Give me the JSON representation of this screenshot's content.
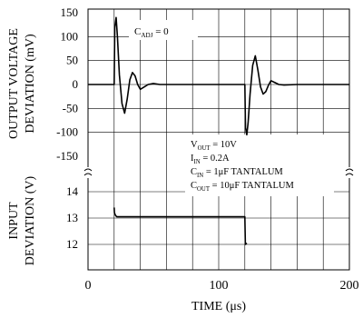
{
  "chart_data": [
    {
      "type": "line",
      "panel": "top",
      "ylabel_lines": [
        "OUTPUT VOLTAGE",
        "DEVIATION (mV)"
      ],
      "yticks": [
        150,
        100,
        50,
        0,
        -50,
        -100,
        -150
      ],
      "ylim": [
        -150,
        150
      ],
      "xlim": [
        0,
        200
      ],
      "grid": true,
      "annotation": {
        "base": "C",
        "sub": "ADJ",
        "rest": " = 0"
      },
      "series": [
        {
          "x": [
            0,
            20,
            20.5,
            21.5,
            22.5,
            24,
            26,
            28,
            30,
            32,
            34,
            36,
            38,
            40,
            43,
            46,
            50,
            55,
            60,
            120,
            120.5,
            121.5,
            122.5,
            124,
            126,
            128,
            130,
            132,
            134,
            136,
            138,
            140,
            143,
            146,
            150,
            160,
            200
          ],
          "y": [
            0,
            0,
            120,
            140,
            100,
            20,
            -40,
            -60,
            -30,
            10,
            25,
            18,
            0,
            -10,
            -5,
            0,
            2,
            0,
            0,
            0,
            -90,
            -105,
            -80,
            -20,
            40,
            60,
            30,
            -5,
            -20,
            -15,
            -2,
            8,
            4,
            0,
            -1,
            0,
            0
          ]
        }
      ]
    },
    {
      "type": "line",
      "panel": "bottom",
      "ylabel_lines": [
        "INPUT",
        "DEVIATION (V)"
      ],
      "yticks": [
        14,
        13,
        12
      ],
      "ylim": [
        11,
        14.5
      ],
      "xlim": [
        0,
        200
      ],
      "grid": true,
      "annotations": [
        {
          "base": "V",
          "sub": "OUT",
          "rest": " = 10V"
        },
        {
          "base": "I",
          "sub": "IN",
          "rest": " = 0.2A"
        },
        {
          "base": "C",
          "sub": "IN",
          "rest": " = 1μF TANTALUM"
        },
        {
          "base": "C",
          "sub": "OUT",
          "rest": " = 10μF TANTALUM"
        }
      ],
      "series": [
        {
          "x": [
            20,
            20.2,
            21,
            22,
            120,
            120.4,
            121.5
          ],
          "y": [
            13.4,
            13.2,
            13.1,
            13.05,
            13.05,
            12.0,
            12.05
          ]
        }
      ]
    }
  ],
  "x_axis": {
    "ticks": [
      0,
      100,
      200
    ],
    "label": "TIME (μs)"
  }
}
